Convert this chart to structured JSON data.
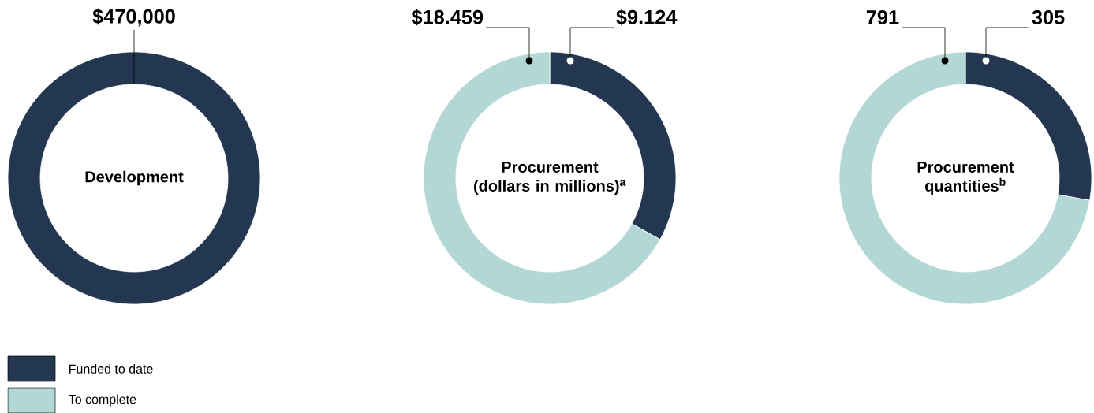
{
  "chart_data": [
    {
      "type": "donut",
      "title": "Development",
      "categories": [
        "Funded to date",
        "To complete"
      ],
      "values": [
        470000,
        0
      ],
      "colors": [
        "#243750",
        "#b3d7d5"
      ],
      "value_labels": [
        "$470,000",
        null
      ],
      "legend": "bottom left"
    },
    {
      "type": "donut",
      "title": "Procurement (dollars in millions)$^{a}$",
      "categories": [
        null,
        null
      ],
      "values": [
        9.124,
        18.459
      ],
      "colors": [
        "#243750",
        "#b3d7d5"
      ],
      "value_labels": [
        "$9.124",
        "$18.459"
      ]
    },
    {
      "type": "donut",
      "title": "Procurement quantities$^{b}$",
      "categories": [
        null,
        null
      ],
      "values": [
        305,
        791
      ],
      "colors": [
        "#243750",
        "#b3d7d5"
      ],
      "value_labels": [
        "305",
        "791"
      ]
    }
  ]
}
